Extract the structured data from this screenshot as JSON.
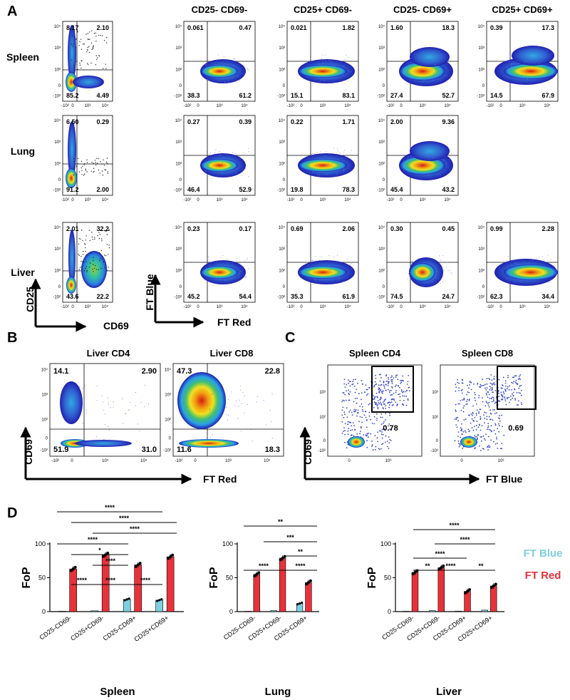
{
  "figure": {
    "panels": {
      "a": "A",
      "b": "B",
      "c": "C",
      "d": "D"
    },
    "panel_a": {
      "column_headers": [
        "CD25- CD69-",
        "CD25+ CD69-",
        "CD25- CD69+",
        "CD25+ CD69+"
      ],
      "row_labels": [
        "Spleen",
        "Lung",
        "Liver"
      ],
      "gate_plots": [
        [
          "8.17",
          "2.10",
          "85.2",
          "4.49"
        ],
        [
          "6.50",
          "0.29",
          "91.2",
          "2.00"
        ],
        [
          "2.01",
          "32.2",
          "43.6",
          "22.2"
        ]
      ],
      "timer_plots": [
        [
          [
            "0.061",
            "0.47",
            "38.3",
            "61.2"
          ],
          [
            "0.021",
            "1.82",
            "15.1",
            "83.1"
          ],
          [
            "1.60",
            "18.3",
            "27.4",
            "52.7"
          ],
          [
            "0.39",
            "17.3",
            "14.5",
            "67.9"
          ]
        ],
        [
          [
            "0.27",
            "0.39",
            "46.4",
            "52.9"
          ],
          [
            "0.22",
            "1.71",
            "19.8",
            "78.3"
          ],
          [
            "2.00",
            "9.36",
            "45.4",
            "43.2"
          ]
        ],
        [
          [
            "0.23",
            "0.17",
            "45.2",
            "54.4"
          ],
          [
            "0.69",
            "2.06",
            "35.3",
            "61.9"
          ],
          [
            "0.30",
            "0.45",
            "74.5",
            "24.7"
          ],
          [
            "0.99",
            "2.28",
            "62.3",
            "34.4"
          ]
        ]
      ],
      "axis_gate_y": "CD25",
      "axis_gate_x": "CD69",
      "axis_timer_y": "FT Blue",
      "axis_timer_x": "FT Red"
    },
    "panel_b": {
      "titles": [
        "Liver CD4",
        "Liver CD8"
      ],
      "quadrants": [
        [
          "14.1",
          "2.90",
          "51.9",
          "31.0"
        ],
        [
          "47.3",
          "22.8",
          "11.6",
          "18.3"
        ]
      ],
      "axis_y": "CD69",
      "axis_x": "FT Red"
    },
    "panel_c": {
      "titles": [
        "Spleen CD4",
        "Spleen CD8"
      ],
      "gate_values": [
        "0.78",
        "0.69"
      ],
      "axis_y": "CD69",
      "axis_x": "FT Blue"
    },
    "tick_labels": {
      "t4": "10⁴",
      "t3": "10³",
      "t2": "10²",
      "t0": "0",
      "tm": "-10²"
    },
    "significance": {
      "s4": "****",
      "s3": "***",
      "s2": "**",
      "s1": "*"
    }
  },
  "chart_data": [
    {
      "type": "bar",
      "title": "Spleen",
      "ylabel": "FoP",
      "ylim": [
        0,
        100
      ],
      "yticks": [
        "0",
        "50",
        "100"
      ],
      "categories": [
        "CD25-CD69-",
        "CD25+CD69-",
        "CD25-CD69+",
        "CD25+CD69+"
      ],
      "series": [
        {
          "name": "FT Blue",
          "values": [
            0.5,
            1.2,
            18,
            17
          ]
        },
        {
          "name": "FT Red",
          "values": [
            63,
            84,
            69,
            81
          ]
        }
      ],
      "brackets": [
        "****",
        "****",
        "****",
        "****",
        "*",
        "****",
        "****",
        "****",
        "****"
      ]
    },
    {
      "type": "bar",
      "title": "Lung",
      "ylabel": "FoP",
      "ylim": [
        0,
        100
      ],
      "yticks": [
        "0",
        "50",
        "100"
      ],
      "categories": [
        "CD25-CD69-",
        "CD25+CD69-",
        "CD25-CD69+"
      ],
      "series": [
        {
          "name": "FT Blue",
          "values": [
            0.5,
            1.5,
            12
          ]
        },
        {
          "name": "FT Red",
          "values": [
            55,
            79,
            43
          ]
        }
      ],
      "brackets": [
        "**",
        "***",
        "**",
        "****",
        "****"
      ]
    },
    {
      "type": "bar",
      "title": "Liver",
      "ylabel": "FoP",
      "ylim": [
        0,
        100
      ],
      "yticks": [
        "0",
        "50",
        "100"
      ],
      "categories": [
        "CD25-CD69-",
        "CD25+CD69-",
        "CD25-CD69+",
        "CD25+CD69+"
      ],
      "series": [
        {
          "name": "FT Blue",
          "values": [
            0.5,
            1.5,
            0.8,
            2.2
          ]
        },
        {
          "name": "FT Red",
          "values": [
            58,
            65,
            30,
            38
          ]
        }
      ],
      "brackets": [
        "****",
        "****",
        "****",
        "**",
        "****",
        "**"
      ]
    }
  ],
  "legend": {
    "ft_blue": "FT Blue",
    "ft_red": "FT Red"
  },
  "colors": {
    "ft_blue": "#7ecfe0",
    "ft_red": "#e8323a",
    "density_hot": "#e02020",
    "density_cold": "#2030c0",
    "scatter": "#3040c0"
  }
}
